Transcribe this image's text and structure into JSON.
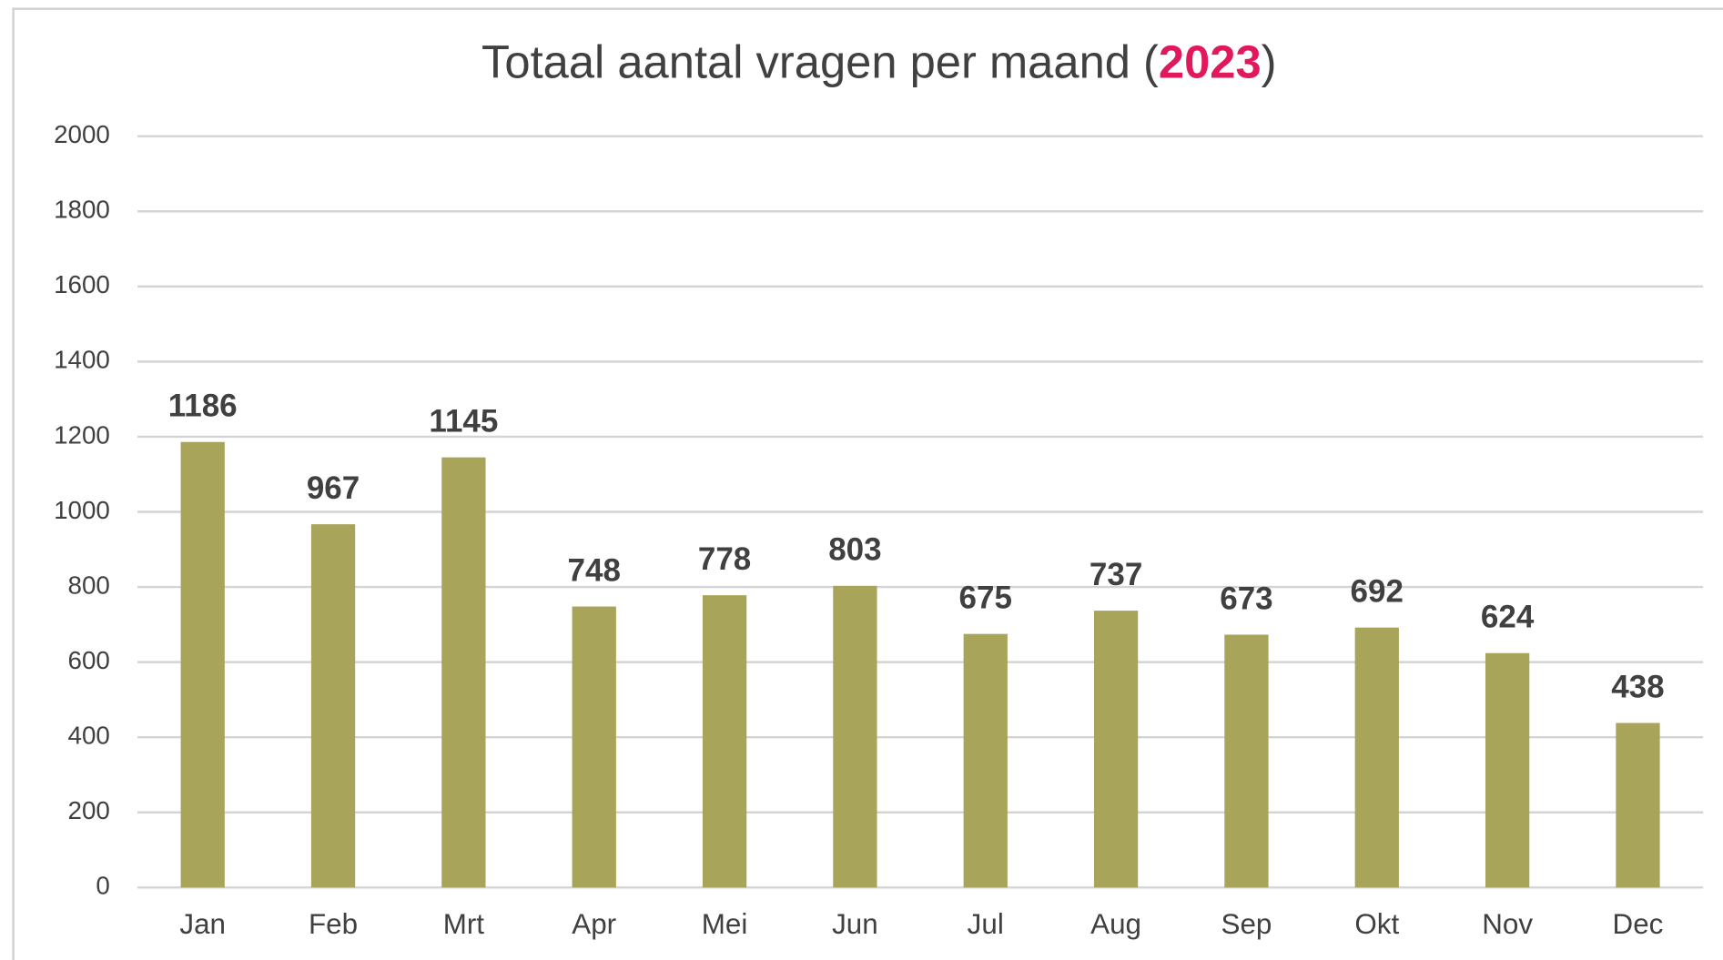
{
  "chart_data": {
    "type": "bar",
    "title_parts": [
      "Totaal aantal vragen per maand (",
      "2023",
      ")"
    ],
    "title_highlight_color": "#e0195f",
    "categories": [
      "Jan",
      "Feb",
      "Mrt",
      "Apr",
      "Mei",
      "Jun",
      "Jul",
      "Aug",
      "Sep",
      "Okt",
      "Nov",
      "Dec"
    ],
    "values": [
      1186,
      967,
      1145,
      748,
      778,
      803,
      675,
      737,
      673,
      692,
      624,
      438
    ],
    "color": "#a8a55a",
    "ylim": [
      0,
      2000
    ],
    "yticks": [
      0,
      200,
      400,
      600,
      800,
      1000,
      1200,
      1400,
      1600,
      1800,
      2000
    ],
    "grid": true
  }
}
